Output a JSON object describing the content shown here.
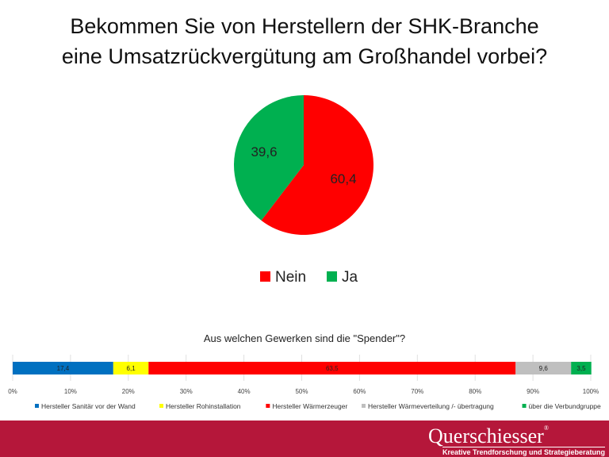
{
  "chart_data": [
    {
      "type": "pie",
      "title": "Bekommen Sie von Herstellern der SHK-Branche eine Umsatzrückvergütung am Großhandel vorbei?",
      "title_lines": [
        "Bekommen Sie von Herstellern der SHK-Branche",
        "eine Umsatzrückvergütung am Großhandel vorbei?"
      ],
      "categories": [
        "Nein",
        "Ja"
      ],
      "values": [
        60.4,
        39.6
      ],
      "labels": [
        "60,4",
        "39,6"
      ],
      "colors": [
        "#ff0000",
        "#00b050"
      ],
      "legend": "bottom"
    },
    {
      "type": "bar",
      "orientation": "horizontal",
      "stacked": "percent",
      "title": "Aus welchen Gewerken sind die \"Spender\"?",
      "series": [
        {
          "name": "Hersteller Sanitär vor der Wand",
          "value": 17.4,
          "label": "17,4",
          "color": "#0070c0"
        },
        {
          "name": "Hersteller Rohinstallation",
          "value": 6.1,
          "label": "6,1",
          "color": "#ffff00"
        },
        {
          "name": "Hersteller Wärmerzeuger",
          "value": 63.5,
          "label": "63,5",
          "color": "#ff0000"
        },
        {
          "name": "Hersteller Wärmeverteilung /- übertragung",
          "value": 9.6,
          "label": "9,6",
          "color": "#bfbfbf"
        },
        {
          "name": "über die Verbundgruppe",
          "value": 3.5,
          "label": "3,5",
          "color": "#00b050"
        }
      ],
      "xlim": [
        0,
        100
      ],
      "ticks": [
        "0%",
        "10%",
        "20%",
        "30%",
        "40%",
        "50%",
        "60%",
        "70%",
        "80%",
        "90%",
        "100%"
      ],
      "grid": true,
      "legend": "bottom"
    }
  ],
  "footer": {
    "brand": "Querschiesser",
    "registered": "®",
    "tagline": "Kreative Trendforschung und Strategieberatung"
  }
}
